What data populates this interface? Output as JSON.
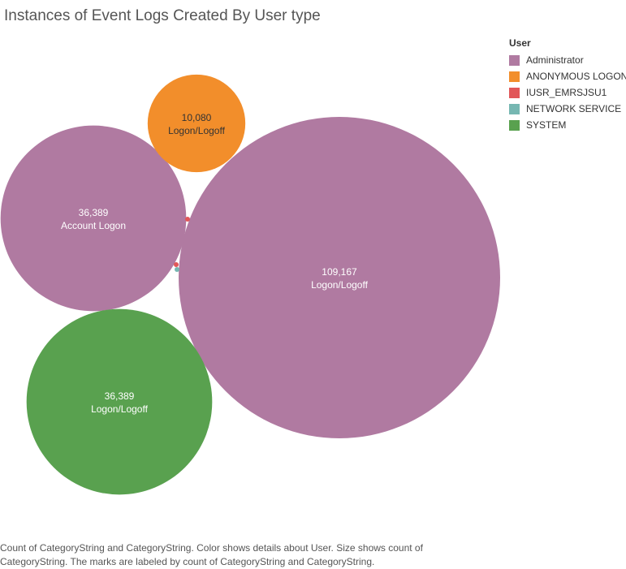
{
  "chart_data": {
    "type": "bubble",
    "title": "Instances of Event Logs Created By User type",
    "legend": {
      "title": "User",
      "placement": "top-right",
      "entries": [
        {
          "name": "Administrator",
          "color": "#b07aa1"
        },
        {
          "name": "ANONYMOUS LOGON",
          "color": "#f28e2b"
        },
        {
          "name": "IUSR_EMRSJSU1",
          "color": "#e15759"
        },
        {
          "name": "NETWORK SERVICE",
          "color": "#76b7b2"
        },
        {
          "name": "SYSTEM",
          "color": "#59a14f"
        }
      ]
    },
    "bubbles": [
      {
        "user": "Administrator",
        "category": "Logon/Logoff",
        "count": 109167,
        "count_label": "109,167",
        "labeled": true
      },
      {
        "user": "Administrator",
        "category": "Account Logon",
        "count": 36389,
        "count_label": "36,389",
        "labeled": true
      },
      {
        "user": "SYSTEM",
        "category": "Logon/Logoff",
        "count": 36389,
        "count_label": "36,389",
        "labeled": true
      },
      {
        "user": "ANONYMOUS LOGON",
        "category": "Logon/Logoff",
        "count": 10080,
        "count_label": "10,080",
        "labeled": true
      },
      {
        "user": "IUSR_EMRSJSU1",
        "category": "",
        "count": 5,
        "count_label": "",
        "labeled": false
      },
      {
        "user": "IUSR_EMRSJSU1",
        "category": "",
        "count": 5,
        "count_label": "",
        "labeled": false
      },
      {
        "user": "NETWORK SERVICE",
        "category": "",
        "count": 3,
        "count_label": "",
        "labeled": false
      }
    ]
  },
  "caption": "Count of CategoryString and CategoryString.  Color shows details about User.  Size shows count of CategoryString.  The marks are labeled by count of CategoryString and CategoryString."
}
